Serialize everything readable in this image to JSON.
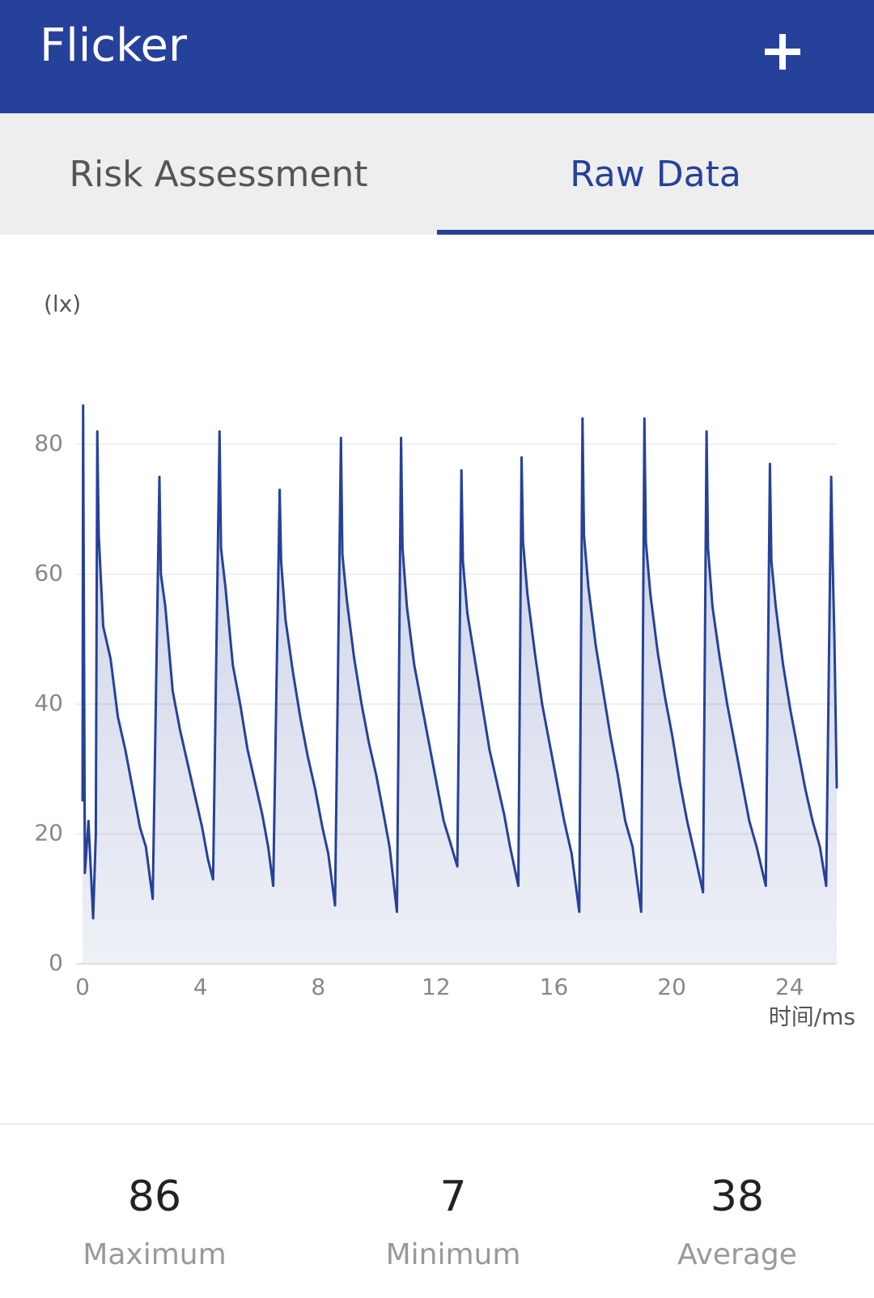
{
  "header": {
    "title": "Flicker"
  },
  "tabs": {
    "items": [
      "Risk Assessment",
      "Raw Data"
    ],
    "active": 1
  },
  "chart_data": {
    "type": "area",
    "y_label": "(lx)",
    "x_label": "时间/ms",
    "color": "#26419a",
    "xlim": [
      -0.22,
      25.6
    ],
    "xticks": [
      0,
      4,
      8,
      12,
      16,
      20,
      24
    ],
    "ylim": [
      0,
      86
    ],
    "yticks": [
      0,
      20,
      40,
      60,
      80
    ],
    "grid": true,
    "x": [
      0,
      0.02,
      0.08,
      0.2,
      0.36,
      0.45,
      0.5,
      0.55,
      0.7,
      0.95,
      1.2,
      1.45,
      1.7,
      1.95,
      2.15,
      2.38,
      2.61,
      2.66,
      2.81,
      3.06,
      3.31,
      3.56,
      3.81,
      4.06,
      4.26,
      4.43,
      4.65,
      4.7,
      4.85,
      5.1,
      5.35,
      5.6,
      5.85,
      6.1,
      6.3,
      6.47,
      6.69,
      6.74,
      6.89,
      7.14,
      7.39,
      7.64,
      7.89,
      8.14,
      8.34,
      8.57,
      8.77,
      8.82,
      8.97,
      9.22,
      9.47,
      9.72,
      9.97,
      10.22,
      10.42,
      10.67,
      10.81,
      10.86,
      11.01,
      11.26,
      11.51,
      11.76,
      12.01,
      12.26,
      12.46,
      12.72,
      12.86,
      12.91,
      13.06,
      13.31,
      13.56,
      13.81,
      14.06,
      14.31,
      14.51,
      14.79,
      14.9,
      14.95,
      15.1,
      15.35,
      15.6,
      15.85,
      16.1,
      16.35,
      16.6,
      16.86,
      16.97,
      17.02,
      17.17,
      17.42,
      17.67,
      17.92,
      18.17,
      18.42,
      18.67,
      18.96,
      19.07,
      19.12,
      19.27,
      19.52,
      19.77,
      20.02,
      20.27,
      20.52,
      20.77,
      21.06,
      21.18,
      21.23,
      21.38,
      21.63,
      21.88,
      22.13,
      22.38,
      22.63,
      22.88,
      23.19,
      23.33,
      23.38,
      23.53,
      23.78,
      24.03,
      24.28,
      24.53,
      24.78,
      25.03,
      25.24,
      25.41,
      25.46,
      25.52,
      25.6
    ],
    "values": [
      25,
      86,
      14,
      22,
      7,
      20,
      82,
      66,
      52,
      47,
      38,
      33,
      27,
      21,
      18,
      10,
      75,
      60,
      55,
      42,
      36,
      31,
      26,
      21,
      16,
      13,
      82,
      64,
      58,
      46,
      40,
      33,
      28,
      23,
      18,
      12,
      73,
      62,
      53,
      45,
      38,
      32,
      27,
      21,
      17,
      9,
      81,
      63,
      56,
      47,
      40,
      34,
      29,
      23,
      18,
      8,
      81,
      64,
      55,
      46,
      40,
      34,
      28,
      22,
      19,
      15,
      76,
      62,
      54,
      47,
      40,
      33,
      28,
      23,
      18,
      12,
      78,
      65,
      57,
      48,
      40,
      34,
      28,
      22,
      17,
      8,
      84,
      66,
      58,
      49,
      42,
      35,
      29,
      22,
      18,
      8,
      84,
      65,
      57,
      48,
      41,
      35,
      28,
      22,
      17,
      11,
      82,
      64,
      55,
      47,
      40,
      34,
      28,
      22,
      18,
      12,
      77,
      62,
      55,
      46,
      39,
      33,
      27,
      22,
      18,
      12,
      75,
      62,
      50,
      27
    ]
  },
  "stats": [
    {
      "value": 86,
      "label": "Maximum"
    },
    {
      "value": 7,
      "label": "Minimum"
    },
    {
      "value": 38,
      "label": "Average"
    }
  ]
}
